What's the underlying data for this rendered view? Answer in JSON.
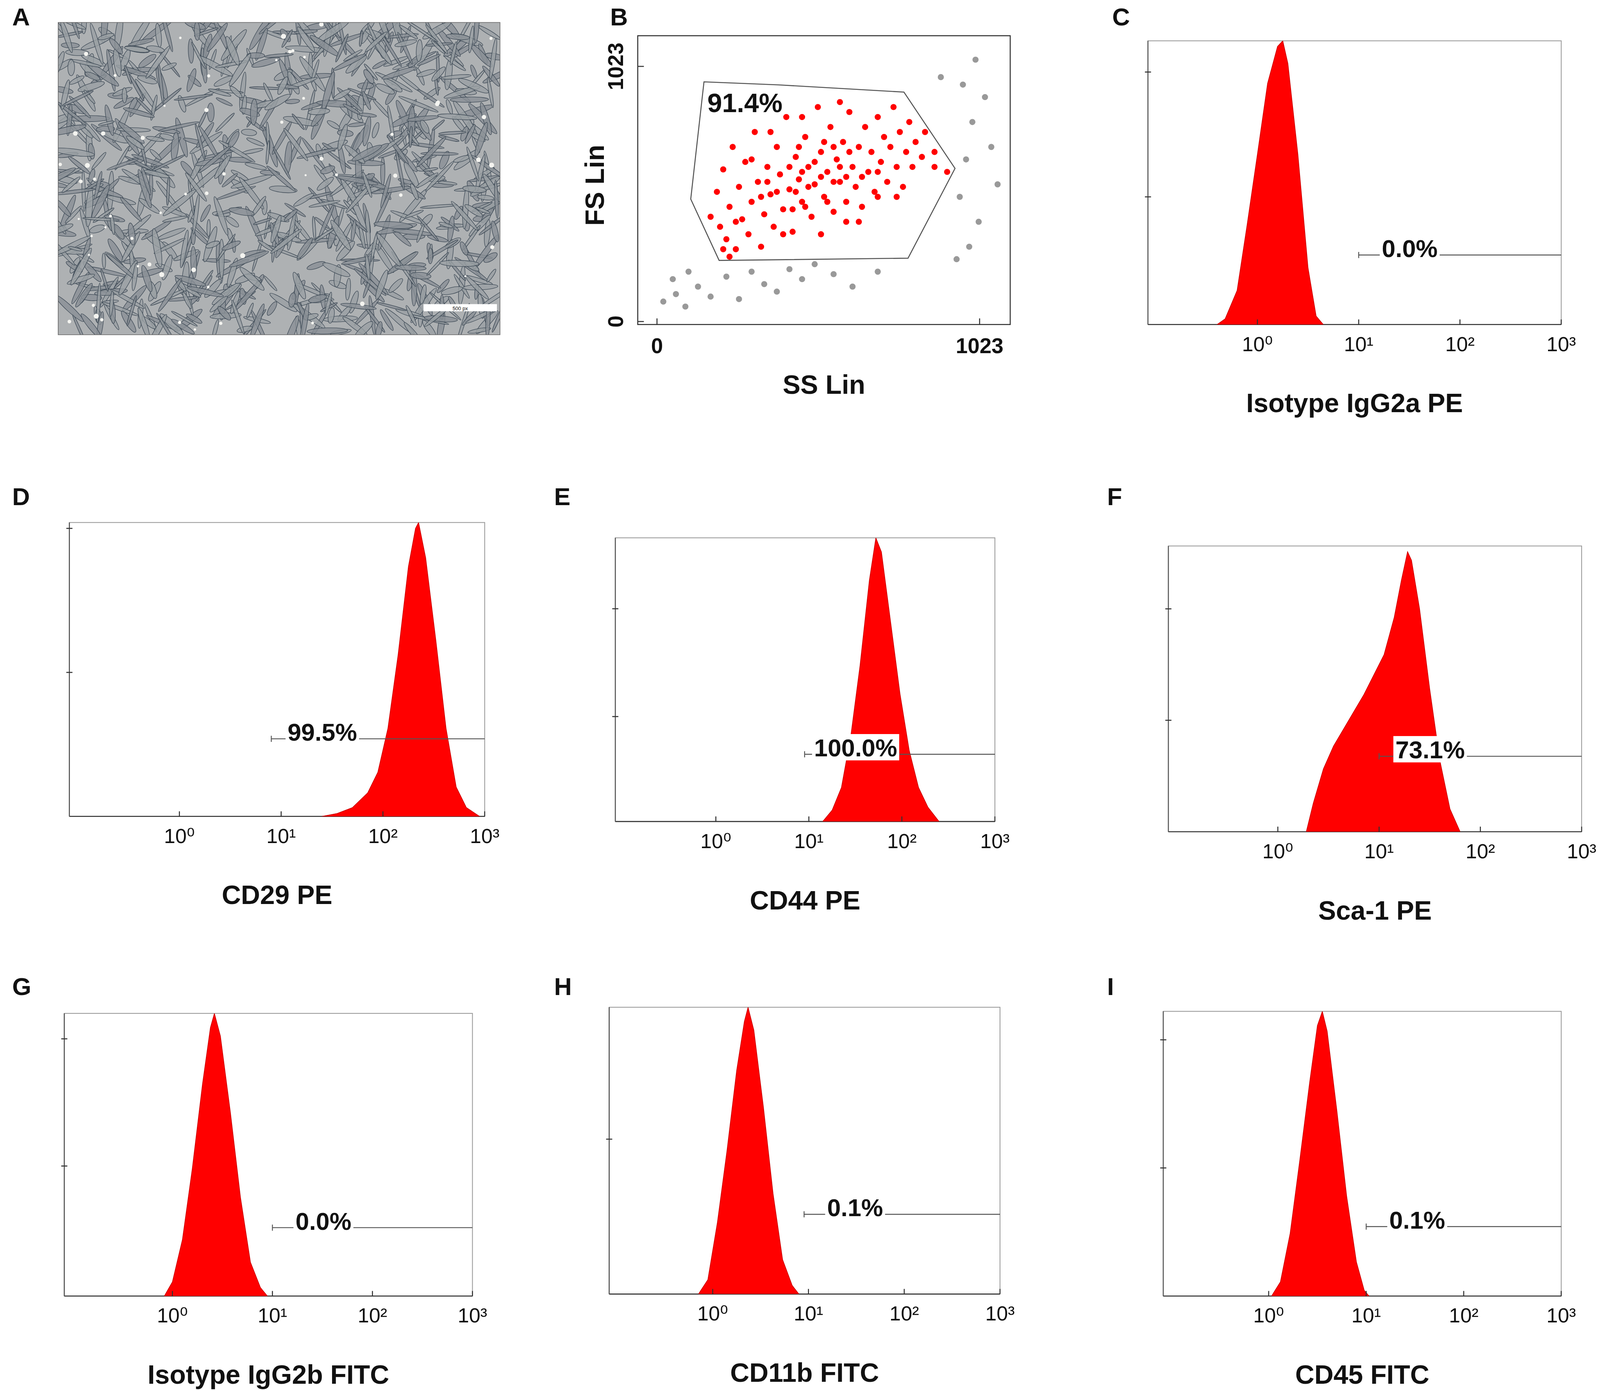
{
  "image_panel": {
    "panel": "A",
    "scale_bar": "500 px"
  },
  "chart_data": [
    {
      "type": "scatter",
      "panel": "B",
      "xlabel": "SS Lin",
      "ylabel": "FS Lin",
      "xlim": [
        -61,
        1120
      ],
      "xticks": [
        0,
        1023
      ],
      "ylim": [
        -12,
        1146
      ],
      "yticks": [
        0,
        1023
      ],
      "series": [
        {
          "color": "#ff0000",
          "x": [
            210,
            170,
            230,
            190,
            200,
            210,
            220,
            230,
            240,
            250,
            260,
            270,
            280,
            290,
            300,
            310,
            320,
            330,
            340,
            350,
            360,
            370,
            380,
            390,
            400,
            410,
            420,
            430,
            440,
            450,
            460,
            470,
            480,
            490,
            500,
            510,
            520,
            530,
            540,
            550,
            560,
            570,
            580,
            590,
            600,
            610,
            620,
            630,
            640,
            650,
            660,
            670,
            680,
            690,
            700,
            710,
            720,
            730,
            740,
            750,
            760,
            770,
            780,
            790,
            800,
            810,
            820,
            840,
            850,
            880,
            880,
            920,
            420,
            440,
            460,
            480,
            500,
            520,
            540,
            560,
            580,
            600,
            450,
            530,
            380,
            350,
            610,
            470,
            650,
            700,
            430,
            560,
            330,
            250,
            600,
            700,
            760,
            400,
            520,
            640,
            300,
            360,
            460,
            580
          ],
          "values": [
            290,
            420,
            260,
            520,
            380,
            610,
            330,
            460,
            700,
            290,
            540,
            410,
            640,
            350,
            480,
            760,
            560,
            300,
            430,
            620,
            510,
            380,
            700,
            590,
            450,
            820,
            530,
            360,
            660,
            570,
            480,
            740,
            620,
            420,
            550,
            860,
            680,
            500,
            600,
            780,
            440,
            650,
            560,
            720,
            480,
            840,
            620,
            540,
            700,
            460,
            780,
            600,
            680,
            520,
            820,
            640,
            740,
            560,
            700,
            860,
            620,
            760,
            540,
            680,
            800,
            620,
            720,
            660,
            760,
            620,
            680,
            600,
            620,
            520,
            600,
            540,
            640,
            580,
            480,
            560,
            620,
            580,
            700,
            720,
            520,
            560,
            680,
            460,
            580,
            600,
            450,
            700,
            500,
            400,
            400,
            500,
            500,
            350,
            350,
            400,
            650,
            760,
            820,
            880
          ]
        },
        {
          "color": "#999999",
          "x": [
            20,
            60,
            90,
            130,
            170,
            220,
            260,
            300,
            340,
            380,
            420,
            460,
            500,
            560,
            620,
            700,
            50,
            100,
            960,
            980,
            1000,
            1020,
            1040,
            990,
            1060,
            970,
            1010,
            950,
            1080,
            900
          ],
          "values": [
            80,
            110,
            60,
            140,
            100,
            180,
            90,
            200,
            150,
            120,
            210,
            170,
            230,
            190,
            140,
            200,
            170,
            200,
            500,
            650,
            800,
            400,
            900,
            300,
            700,
            950,
            1050,
            250,
            550,
            980
          ]
        }
      ],
      "gate": {
        "label": "91.4%",
        "points": [
          [
            149,
            961
          ],
          [
            385,
            949
          ],
          [
            783,
            920
          ],
          [
            945,
            614
          ],
          [
            796,
            254
          ],
          [
            197,
            245
          ],
          [
            107,
            491
          ]
        ]
      }
    },
    {
      "type": "area",
      "panel": "C",
      "xlabel": "Isotype IgG2a PE",
      "log": "x",
      "tick_labels": "x",
      "color": "#ff0000",
      "xlim": [
        0.083,
        1000
      ],
      "xticks": [
        {
          "value": 1,
          "label": "10⁰"
        },
        {
          "value": 10,
          "label": "10¹"
        },
        {
          "value": 100,
          "label": "10²"
        },
        {
          "value": 1000,
          "label": "10³"
        }
      ],
      "ylim": [
        0,
        100
      ],
      "yticks": [
        45,
        89
      ],
      "x": [
        0.4,
        0.48,
        0.63,
        0.79,
        1.0,
        1.26,
        1.58,
        1.78,
        2.0,
        2.51,
        3.16,
        3.8,
        4.47
      ],
      "values": [
        0,
        2,
        12,
        35,
        60,
        85,
        98,
        100,
        92,
        60,
        20,
        3,
        0
      ],
      "gate": {
        "label": "0.0%",
        "range": [
          10,
          1000
        ],
        "level": 24.5
      }
    },
    {
      "type": "area",
      "panel": "D",
      "xlabel": "CD29 PE",
      "log": "x",
      "tick_labels": "x",
      "color": "#ff0000",
      "xlim": [
        0.083,
        1000
      ],
      "xticks": [
        {
          "value": 1,
          "label": "10⁰"
        },
        {
          "value": 10,
          "label": "10¹"
        },
        {
          "value": 100,
          "label": "10²"
        },
        {
          "value": 1000,
          "label": "10³"
        }
      ],
      "ylim": [
        0,
        100
      ],
      "yticks": [
        49,
        98
      ],
      "x": [
        25.1,
        35.5,
        50.1,
        70.8,
        89.1,
        112,
        141,
        178,
        209,
        224,
        263,
        331,
        417,
        525,
        661,
        891
      ],
      "values": [
        0,
        1,
        3,
        8,
        15,
        30,
        55,
        85,
        98,
        100,
        88,
        60,
        30,
        10,
        3,
        0
      ],
      "gate": {
        "label": "99.5%",
        "range": [
          8,
          1000
        ],
        "level": 26.4
      }
    },
    {
      "type": "area",
      "panel": "E",
      "xlabel": "CD44 PE",
      "log": "x",
      "tick_labels": "x",
      "color": "#ff0000",
      "xlim": [
        0.083,
        1000
      ],
      "xticks": [
        {
          "value": 1,
          "label": "10⁰"
        },
        {
          "value": 10,
          "label": "10¹"
        },
        {
          "value": 100,
          "label": "10²"
        },
        {
          "value": 1000,
          "label": "10³"
        }
      ],
      "ylim": [
        0,
        100
      ],
      "yticks": [
        37,
        75
      ],
      "x": [
        14.1,
        17.8,
        22.4,
        28.2,
        35.5,
        44.7,
        52.5,
        60.3,
        75.9,
        95.5,
        120,
        151,
        191,
        251
      ],
      "values": [
        0,
        4,
        12,
        30,
        55,
        85,
        100,
        95,
        70,
        45,
        25,
        12,
        5,
        0
      ],
      "gate": {
        "label": "100.0%",
        "range": [
          9,
          1000
        ],
        "level": 23.7
      }
    },
    {
      "type": "area",
      "panel": "F",
      "xlabel": "Sca-1 PE",
      "log": "x",
      "tick_labels": "x",
      "color": "#ff0000",
      "xlim": [
        0.083,
        1000
      ],
      "xticks": [
        {
          "value": 1,
          "label": "10⁰"
        },
        {
          "value": 10,
          "label": "10¹"
        },
        {
          "value": 100,
          "label": "10²"
        },
        {
          "value": 1000,
          "label": "10³"
        }
      ],
      "ylim": [
        0,
        100
      ],
      "yticks": [
        39,
        78
      ],
      "x": [
        1.91,
        2.24,
        2.82,
        3.55,
        4.47,
        5.62,
        7.08,
        8.91,
        11.2,
        14.1,
        16.6,
        19.1,
        20.9,
        25.1,
        31.6,
        39.8,
        50.1,
        63.1
      ],
      "values": [
        0,
        10,
        22,
        30,
        36,
        42,
        48,
        55,
        62,
        75,
        88,
        98,
        95,
        78,
        50,
        25,
        8,
        0
      ],
      "gate": {
        "label": "73.1%",
        "range": [
          10,
          1000
        ],
        "level": 26.4
      }
    },
    {
      "type": "area",
      "panel": "G",
      "xlabel": "Isotype IgG2b FITC",
      "log": "x",
      "tick_labels": "x",
      "color": "#ff0000",
      "xlim": [
        0.083,
        1000
      ],
      "xticks": [
        {
          "value": 1,
          "label": "10⁰"
        },
        {
          "value": 10,
          "label": "10¹"
        },
        {
          "value": 100,
          "label": "10²"
        },
        {
          "value": 1000,
          "label": "10³"
        }
      ],
      "ylim": [
        0,
        100
      ],
      "yticks": [
        46,
        91
      ],
      "x": [
        0.83,
        1.0,
        1.26,
        1.58,
        2.0,
        2.4,
        2.63,
        3.02,
        3.8,
        4.79,
        6.03,
        7.59,
        8.91
      ],
      "values": [
        0,
        5,
        20,
        45,
        75,
        95,
        100,
        92,
        65,
        35,
        12,
        3,
        0
      ],
      "gate": {
        "label": "0.0%",
        "range": [
          10,
          1000
        ],
        "level": 24.2
      }
    },
    {
      "type": "area",
      "panel": "H",
      "xlabel": "CD11b FITC",
      "log": "x",
      "tick_labels": "x",
      "color": "#ff0000",
      "xlim": [
        0.083,
        1000
      ],
      "xticks": [
        {
          "value": 1,
          "label": "10⁰"
        },
        {
          "value": 10,
          "label": "10¹"
        },
        {
          "value": 100,
          "label": "10²"
        },
        {
          "value": 1000,
          "label": "10³"
        }
      ],
      "ylim": [
        0,
        100
      ],
      "yticks": [
        54
      ],
      "x": [
        0.71,
        0.89,
        1.12,
        1.41,
        1.78,
        2.14,
        2.34,
        2.69,
        3.39,
        4.27,
        5.37,
        6.76,
        7.94
      ],
      "values": [
        0,
        5,
        25,
        50,
        78,
        95,
        100,
        92,
        65,
        35,
        12,
        3,
        0
      ],
      "gate": {
        "label": "0.1%",
        "range": [
          9,
          1000
        ],
        "level": 27.8
      }
    },
    {
      "type": "area",
      "panel": "I",
      "xlabel": "CD45 FITC",
      "log": "x",
      "tick_labels": "x",
      "color": "#ff0000",
      "xlim": [
        0.083,
        1000
      ],
      "xticks": [
        {
          "value": 1,
          "label": "10⁰"
        },
        {
          "value": 10,
          "label": "10¹"
        },
        {
          "value": 100,
          "label": "10²"
        },
        {
          "value": 1000,
          "label": "10³"
        }
      ],
      "ylim": [
        0,
        100
      ],
      "yticks": [
        45,
        90
      ],
      "x": [
        1.07,
        1.32,
        1.66,
        2.09,
        2.63,
        3.16,
        3.55,
        3.98,
        5.01,
        6.31,
        7.94,
        9.55,
        10.7
      ],
      "values": [
        0,
        5,
        22,
        48,
        75,
        95,
        100,
        93,
        65,
        35,
        12,
        2,
        0
      ],
      "gate": {
        "label": "0.1%",
        "range": [
          10,
          1000
        ],
        "level": 24.4
      }
    }
  ]
}
